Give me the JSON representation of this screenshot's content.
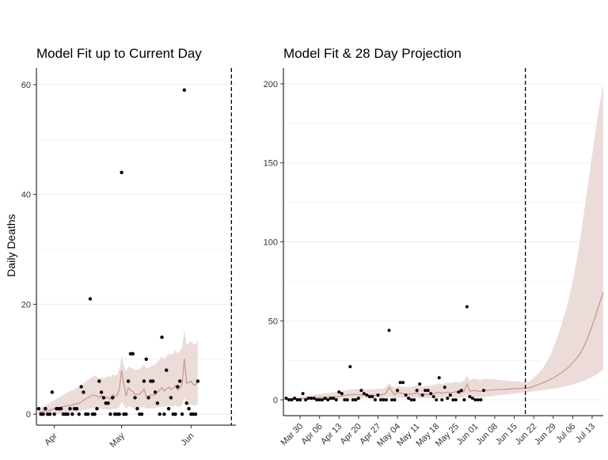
{
  "page": {
    "ylabel": "Daily Deaths"
  },
  "colors": {
    "band": "#ecdcd9",
    "line": "#c99a92",
    "points": "#000000",
    "grid": "#ebebeb",
    "axis": "#000000",
    "text": "#333333"
  },
  "chart_data": [
    {
      "type": "scatter",
      "title": "Model Fit up to Current Day",
      "xlabel": "",
      "ylabel": "Daily Deaths",
      "x_range": [
        "2020-03-24",
        "2020-06-21"
      ],
      "ylim": [
        -2,
        63
      ],
      "y_ticks": [
        0,
        20,
        40,
        60
      ],
      "x_ticks": [
        {
          "date": "2020-04-01",
          "label": "Apr"
        },
        {
          "date": "2020-05-01",
          "label": "May"
        },
        {
          "date": "2020-06-01",
          "label": "Jun"
        }
      ],
      "grid": "horizontal",
      "legend": "none",
      "current_day": "2020-06-19",
      "observed_deaths": {
        "start": "2020-03-25",
        "values": [
          1,
          0,
          0,
          1,
          0,
          0,
          4,
          0,
          1,
          1,
          1,
          0,
          0,
          0,
          1,
          0,
          1,
          1,
          0,
          5,
          4,
          0,
          0,
          21,
          0,
          0,
          1,
          6,
          4,
          3,
          2,
          2,
          0,
          3,
          0,
          0,
          0,
          44,
          0,
          0,
          6,
          11,
          11,
          3,
          1,
          0,
          0,
          6,
          10,
          3,
          6,
          6,
          4,
          2,
          0,
          14,
          0,
          8,
          1,
          3,
          0,
          0,
          5,
          6,
          0,
          59,
          2,
          1,
          0,
          0,
          0,
          6
        ]
      },
      "model_fit": {
        "start": "2020-03-25",
        "median": [
          0.3,
          0.4,
          0.5,
          0.5,
          0.6,
          0.7,
          0.9,
          1,
          1.1,
          1.2,
          1.3,
          1.4,
          1.5,
          1.5,
          1.6,
          1.7,
          1.8,
          1.9,
          2,
          2.2,
          2.5,
          2.8,
          3,
          3.2,
          3.5,
          3.4,
          3.3,
          3,
          3.4,
          2.8,
          3,
          3.1,
          2.7,
          3.6,
          3.2,
          3.5,
          4.5,
          8,
          5.5,
          3.3,
          4.8,
          4.4,
          4.1,
          3.6,
          3.6,
          3.6,
          4,
          4.6,
          3.3,
          3.2,
          3.5,
          3.5,
          3.5,
          4,
          4.4,
          4.8,
          4.2,
          4.6,
          4.9,
          4.5,
          4.7,
          5.2,
          4.4,
          4.7,
          5.4,
          10.1,
          5.6,
          5.8,
          6,
          5.4,
          5.3,
          6
        ],
        "upper": [
          1,
          1.2,
          1.4,
          1.5,
          1.8,
          2,
          2.3,
          2.5,
          2.8,
          3,
          3.2,
          3.5,
          3.8,
          4,
          4.2,
          4.4,
          4.6,
          4.8,
          5,
          5.3,
          5.6,
          5.9,
          6.2,
          6.5,
          6.8,
          7,
          6.8,
          6.5,
          6.8,
          6.5,
          6.7,
          6.9,
          6.7,
          7.3,
          7,
          7.2,
          8.2,
          10.7,
          9,
          7.8,
          8.7,
          8.5,
          8.3,
          8.1,
          8.1,
          8.2,
          8.6,
          9.1,
          8.4,
          8.4,
          8.7,
          8.9,
          9.1,
          9.5,
          10,
          10.5,
          10,
          10.5,
          11,
          10.8,
          11,
          11.7,
          11,
          11.5,
          12.2,
          15.5,
          12.5,
          13,
          13.3,
          12.8,
          12.7,
          13.5
        ],
        "lower": [
          0,
          0,
          0,
          0,
          0,
          0,
          0,
          0,
          0,
          0,
          0,
          0.1,
          0.1,
          0.2,
          0.3,
          0.3,
          0.4,
          0.4,
          0.5,
          0.6,
          0.7,
          0.8,
          0.9,
          1,
          1.1,
          1,
          1,
          0.9,
          1,
          0.8,
          0.9,
          0.9,
          0.8,
          1,
          0.9,
          1,
          1.3,
          2.3,
          1.6,
          1,
          1.4,
          1.3,
          1.2,
          1.1,
          1.1,
          1.1,
          1.2,
          1.4,
          1,
          1,
          1.1,
          1.1,
          1.1,
          1.2,
          1.3,
          1.4,
          1.3,
          1.4,
          1.5,
          1.4,
          1.4,
          1.6,
          1.3,
          1.4,
          1.6,
          3,
          1.7,
          1.7,
          1.8,
          1.6,
          1.6,
          1.8
        ]
      }
    },
    {
      "type": "scatter",
      "title": "Model Fit & 28 Day Projection",
      "xlabel": "",
      "ylabel": "",
      "x_range": [
        "2020-03-24",
        "2020-07-17"
      ],
      "ylim": [
        -10,
        210
      ],
      "y_ticks": [
        0,
        50,
        100,
        150,
        200
      ],
      "x_ticks": [
        {
          "date": "2020-03-30",
          "label": "Mar 30"
        },
        {
          "date": "2020-04-06",
          "label": "Apr 06"
        },
        {
          "date": "2020-04-13",
          "label": "Apr 13"
        },
        {
          "date": "2020-04-20",
          "label": "Apr 20"
        },
        {
          "date": "2020-04-27",
          "label": "Apr 27"
        },
        {
          "date": "2020-05-04",
          "label": "May 04"
        },
        {
          "date": "2020-05-11",
          "label": "May 11"
        },
        {
          "date": "2020-05-18",
          "label": "May 18"
        },
        {
          "date": "2020-05-25",
          "label": "May 25"
        },
        {
          "date": "2020-06-01",
          "label": "Jun 01"
        },
        {
          "date": "2020-06-08",
          "label": "Jun 08"
        },
        {
          "date": "2020-06-15",
          "label": "Jun 15"
        },
        {
          "date": "2020-06-22",
          "label": "Jun 22"
        },
        {
          "date": "2020-06-29",
          "label": "Jun 29"
        },
        {
          "date": "2020-07-06",
          "label": "Jul 06"
        },
        {
          "date": "2020-07-13",
          "label": "Jul 13"
        }
      ],
      "grid": "horizontal",
      "legend": "none",
      "current_day": "2020-06-19",
      "projection": {
        "start": "2020-06-20",
        "median": [
          7.5,
          8,
          8.6,
          9.2,
          9.9,
          10.6,
          11.3,
          12.1,
          13,
          13.9,
          14.9,
          16,
          17.2,
          18.5,
          20,
          21.6,
          23.4,
          25.4,
          27.6,
          30.2,
          33.5,
          37.5,
          42,
          47,
          52,
          57.5,
          63,
          68
        ],
        "upper": [
          11,
          12.5,
          14,
          15.5,
          17.5,
          19.5,
          22,
          25,
          28.5,
          32.5,
          37,
          42,
          47.5,
          53.5,
          60,
          67,
          75,
          84,
          94,
          105,
          118,
          130,
          143,
          155,
          167,
          179,
          190,
          200
        ],
        "lower": [
          5,
          5.2,
          5.4,
          5.6,
          5.8,
          6,
          6.2,
          6.5,
          6.8,
          7,
          7.3,
          7.6,
          8,
          8.4,
          8.8,
          9.2,
          9.7,
          10.2,
          10.8,
          11.4,
          12,
          12.8,
          13.6,
          14.5,
          15.5,
          16.6,
          17.8,
          19
        ]
      }
    }
  ]
}
